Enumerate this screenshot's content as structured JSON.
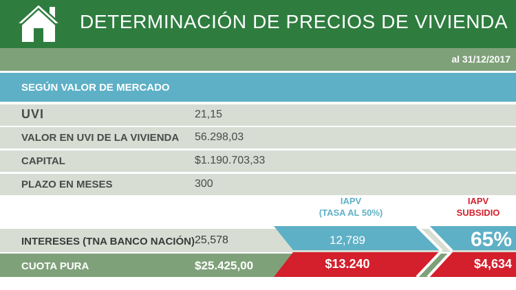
{
  "header": {
    "title": "DETERMINACIÓN DE PRECIOS DE VIVIENDA"
  },
  "date_label": "al 31/12/2017",
  "section": {
    "label": "SEGÚN VALOR DE MERCADO"
  },
  "rows": [
    {
      "label": "UVI",
      "value": "21,15"
    },
    {
      "label": "VALOR EN UVI DE LA VIVIENDA",
      "value": "56.298,03"
    },
    {
      "label": "CAPITAL",
      "value": "$1.190.703,33"
    },
    {
      "label": "PLAZO EN MESES",
      "value": "300"
    }
  ],
  "columns": {
    "tasa": {
      "line1": "IAPV",
      "line2": "(TASA AL 50%)"
    },
    "subsidio": {
      "line1": "IAPV",
      "line2": "SUBSIDIO"
    }
  },
  "intereses": {
    "label": "INTERESES (TNA BANCO NACIÓN)",
    "value": "25,578",
    "tasa_value": "12,789",
    "subsidio_value": "65%"
  },
  "cuota": {
    "label": "CUOTA PURA",
    "value": "$25.425,00",
    "tasa_value": "$13.240",
    "subsidio_value": "$4,634"
  },
  "colors": {
    "green": "#2e7d3f",
    "sage": "#7fa17a",
    "teal": "#5eb0c6",
    "light": "#d7ddd2",
    "red": "#d41f2c"
  },
  "icons": {
    "logo": "house-icon"
  }
}
